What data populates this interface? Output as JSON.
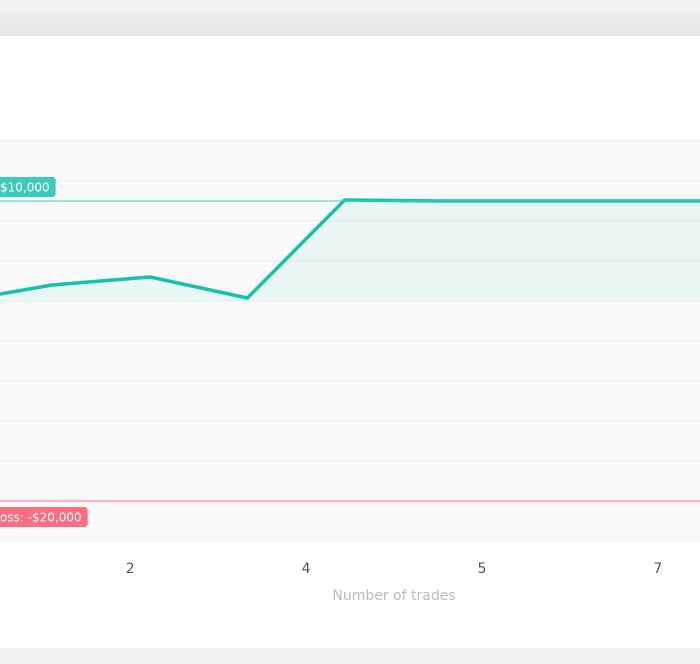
{
  "chart_data": {
    "type": "line",
    "x_label": "Number of trades",
    "x": [
      1.14,
      1.585,
      2.42,
      3.25,
      4.08,
      4.89,
      7.11
    ],
    "series": [
      {
        "color": "#12c2ad",
        "values": [
          700,
          1600,
          2400,
          300,
          10100,
          10000,
          10000
        ]
      }
    ],
    "xlim": [
      1.14,
      7.11
    ],
    "xticks": [
      {
        "value": 2.25,
        "label": "2"
      },
      {
        "value": 3.75,
        "label": "4"
      },
      {
        "value": 5.25,
        "label": "5"
      },
      {
        "value": 6.75,
        "label": "7"
      }
    ],
    "ylim": [
      -24000,
      16000
    ],
    "yticks": [
      16000,
      12000,
      8000,
      4000,
      0,
      -4000,
      -8000,
      -12000,
      -16000,
      -20000,
      -24000
    ],
    "annotations": [
      {
        "label": "$10,000",
        "value": 10000,
        "color": "#3ec9bd"
      },
      {
        "label": "oss: -$20,000",
        "value": -20000,
        "color": "#ff6b7f"
      }
    ],
    "grid": true
  }
}
